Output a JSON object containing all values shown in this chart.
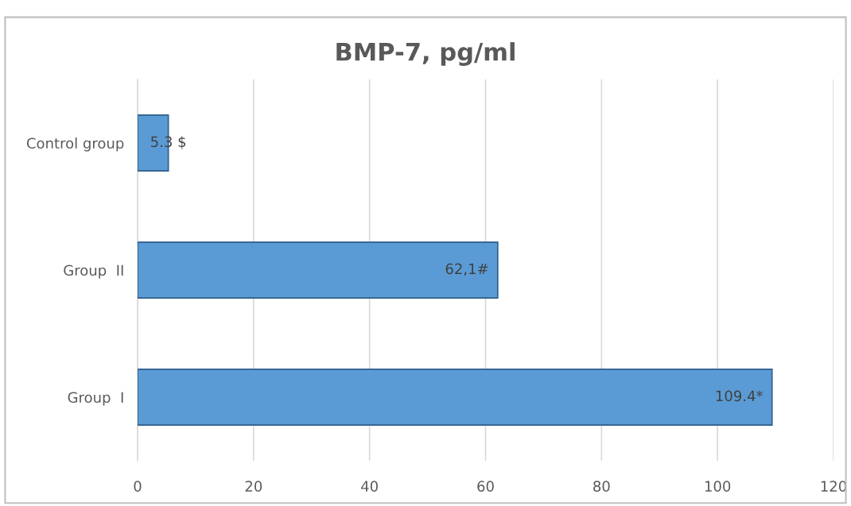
{
  "chart_data": {
    "type": "bar",
    "orientation": "horizontal",
    "title": "BMP-7, pg/ml",
    "categories": [
      "Control group",
      "Group  II",
      "Group  I"
    ],
    "values": [
      5.3,
      62.1,
      109.4
    ],
    "value_labels": [
      "5.3 $",
      "62,1#",
      "109.4*"
    ],
    "color": "#5b9bd5",
    "xlim": [
      0,
      120
    ],
    "xticks": [
      0,
      20,
      40,
      60,
      80,
      100,
      120
    ],
    "grid": "x",
    "legend": false
  }
}
